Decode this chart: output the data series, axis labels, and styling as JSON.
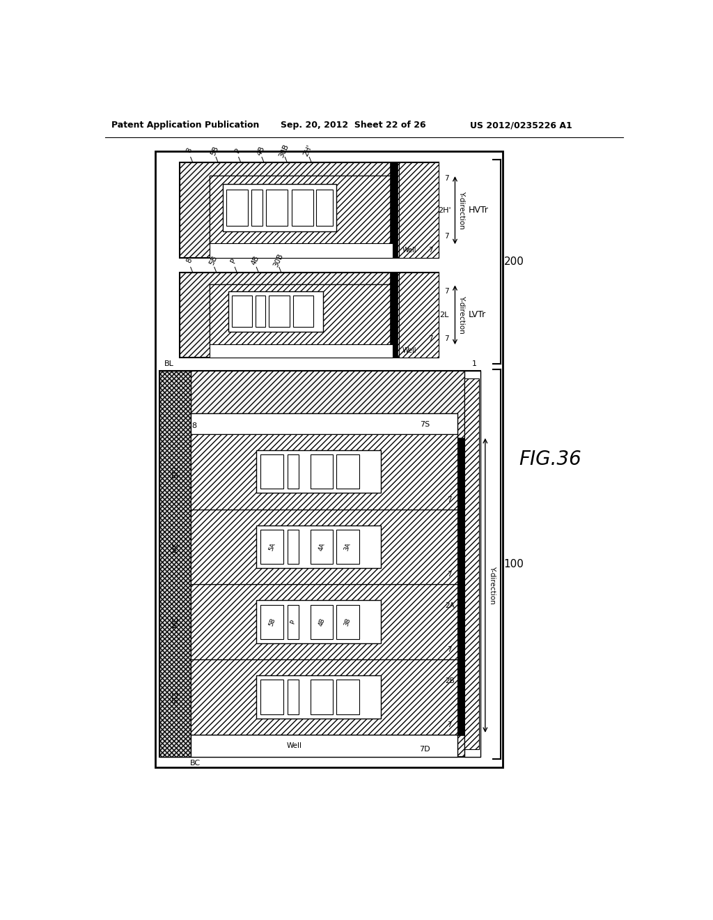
{
  "title_left": "Patent Application Publication",
  "title_center": "Sep. 20, 2012  Sheet 22 of 26",
  "title_right": "US 2012/0235226 A1",
  "fig_label": "FIG.36",
  "background": "#ffffff"
}
